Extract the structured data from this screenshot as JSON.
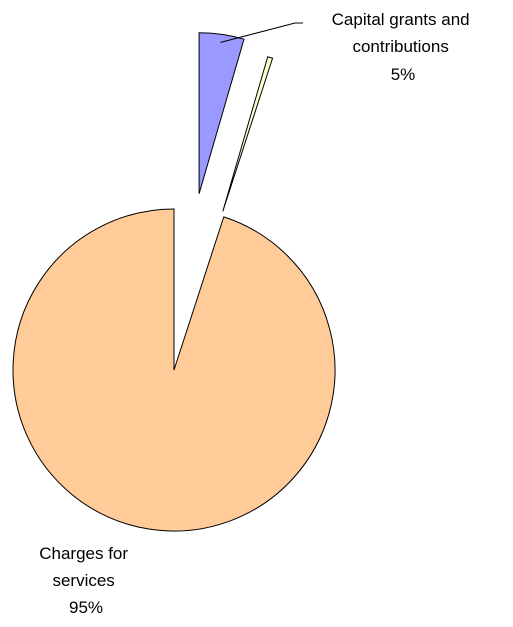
{
  "chart_data": {
    "type": "pie",
    "title": "",
    "slices": [
      {
        "label_lines": [
          "Capital grants and",
          "contributions"
        ],
        "percent_label": "5%",
        "value": 4.5,
        "color": "#9999FF",
        "exploded": true
      },
      {
        "label_lines": [],
        "percent_label": "",
        "value": 0.5,
        "color": "#FFFFCC",
        "exploded": true
      },
      {
        "label_lines": [
          "Charges for",
          "services"
        ],
        "percent_label": "95%",
        "value": 95,
        "color": "#FFCC99",
        "exploded": true
      }
    ],
    "legend": "none"
  }
}
